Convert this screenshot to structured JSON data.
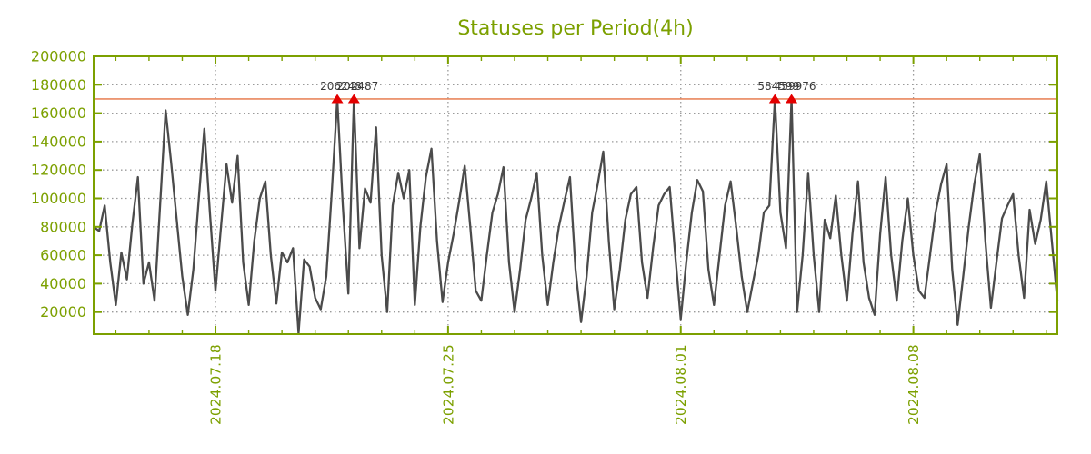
{
  "colors": {
    "axis_olive": "#7ca000",
    "grid_gray": "#9a9a9a",
    "series_line": "#4b4b4b",
    "threshold_red": "#e9875e",
    "marker_red": "#e30000",
    "annotation_text": "#3a3a3a",
    "background": "#ffffff"
  },
  "chart_data": {
    "type": "line",
    "title": "Statuses per Period(4h)",
    "period": "4h",
    "series_name": "Statuses",
    "grid": true,
    "legend": "none",
    "ylim": [
      4000,
      200000
    ],
    "y_ticks": [
      20000,
      40000,
      60000,
      80000,
      100000,
      120000,
      140000,
      160000,
      180000,
      200000
    ],
    "x_ticks": [
      {
        "index": 22,
        "label": "2024.07.18"
      },
      {
        "index": 64,
        "label": "2024.07.25"
      },
      {
        "index": 106,
        "label": "2024.08.01"
      },
      {
        "index": 148,
        "label": "2024.08.08"
      }
    ],
    "x_minor_ticks_start": 4,
    "x_minor_ticks_every": 6,
    "threshold_line": 170000,
    "values": [
      80000,
      77000,
      95000,
      55000,
      25000,
      62000,
      43000,
      82000,
      115000,
      40000,
      55000,
      28000,
      95000,
      162000,
      125000,
      85000,
      45000,
      18000,
      50000,
      100000,
      149000,
      90000,
      35000,
      80000,
      124000,
      97000,
      130000,
      55000,
      25000,
      70000,
      100000,
      112000,
      60000,
      26000,
      62000,
      55000,
      65000,
      5000,
      57000,
      52000,
      30000,
      22000,
      45000,
      105000,
      170000,
      95000,
      33000,
      170000,
      65000,
      107000,
      97000,
      150000,
      60000,
      20000,
      95000,
      118000,
      100000,
      120000,
      25000,
      80000,
      115000,
      135000,
      70000,
      27000,
      55000,
      75000,
      98000,
      123000,
      80000,
      35000,
      28000,
      60000,
      90000,
      103000,
      122000,
      55000,
      20000,
      50000,
      85000,
      100000,
      118000,
      60000,
      25000,
      55000,
      80000,
      98000,
      115000,
      50000,
      13000,
      45000,
      90000,
      110000,
      133000,
      70000,
      22000,
      50000,
      85000,
      103000,
      108000,
      55000,
      30000,
      65000,
      95000,
      103000,
      108000,
      60000,
      15000,
      55000,
      90000,
      113000,
      105000,
      50000,
      25000,
      60000,
      95000,
      112000,
      80000,
      45000,
      20000,
      40000,
      60000,
      90000,
      95000,
      170000,
      90000,
      65000,
      170000,
      20000,
      60000,
      118000,
      60000,
      20000,
      85000,
      72000,
      102000,
      60000,
      28000,
      75000,
      112000,
      55000,
      30000,
      18000,
      75000,
      115000,
      60000,
      28000,
      70000,
      100000,
      60000,
      35000,
      30000,
      60000,
      90000,
      110000,
      124000,
      50000,
      11000,
      45000,
      80000,
      110000,
      131000,
      70000,
      23000,
      55000,
      86000,
      95000,
      103000,
      60000,
      30000,
      92000,
      68000,
      85000,
      112000,
      70000,
      28000
    ],
    "markers": [
      {
        "index": 44,
        "label": "206248"
      },
      {
        "index": 47,
        "label": "202487"
      },
      {
        "index": 123,
        "label": "584599"
      },
      {
        "index": 126,
        "label": "459976"
      }
    ]
  }
}
